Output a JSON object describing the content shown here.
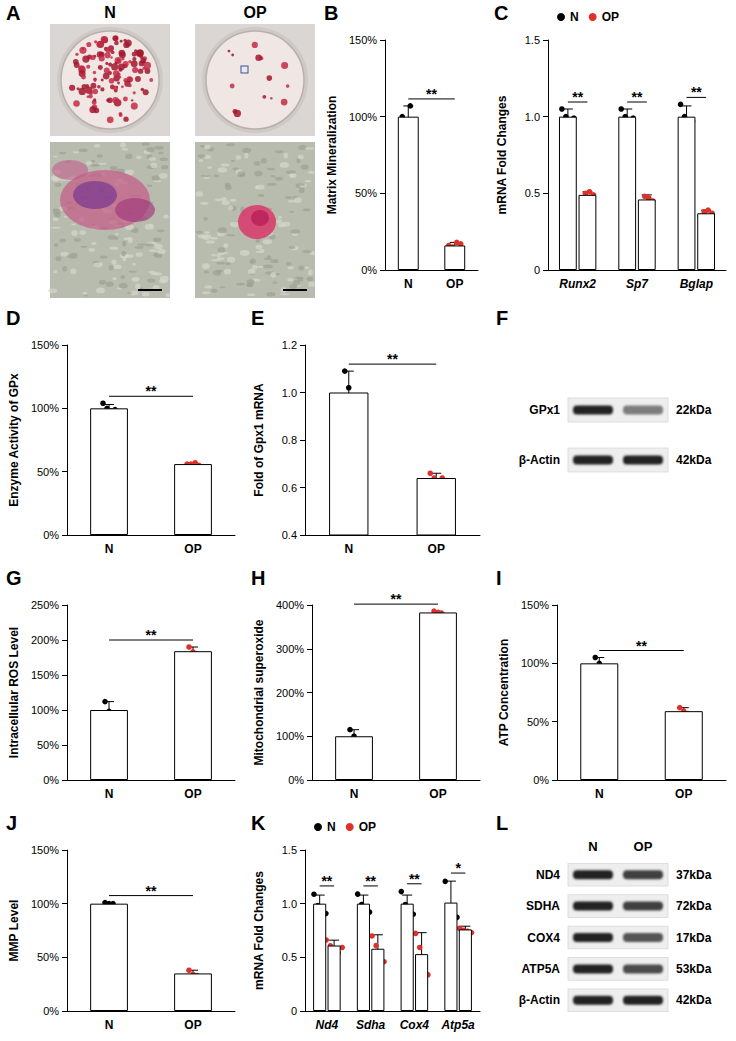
{
  "chart_data": [
    {
      "panel": "B",
      "type": "bar",
      "categories": [
        "N",
        "OP"
      ],
      "values": [
        100,
        16
      ],
      "errors": [
        7,
        2
      ],
      "points": [
        [
          100,
          96,
          107,
          97
        ],
        [
          16,
          15,
          18,
          17
        ]
      ],
      "colors": [
        "#000000",
        "#e0302a"
      ],
      "ylabel": "Matrix Mineralization",
      "ylim": [
        0,
        150
      ],
      "yticks": [
        {
          "value": 0,
          "label": "0%"
        },
        {
          "value": 50,
          "label": "50%"
        },
        {
          "value": 100,
          "label": "100%"
        },
        {
          "value": 150,
          "label": "150%"
        }
      ],
      "significance": "**"
    },
    {
      "panel": "C",
      "type": "bar",
      "categories": [
        "Runx2",
        "Sp7",
        "Bglap"
      ],
      "series": [
        {
          "name": "N",
          "color": "#000000",
          "values": [
            1,
            1,
            1
          ],
          "errors": [
            0.05,
            0.05,
            0.07
          ],
          "points": [
            [
              1.05,
              1.0,
              0.96,
              0.99
            ],
            [
              1.05,
              1.0,
              0.96,
              0.99
            ],
            [
              1.08,
              1.0,
              0.95,
              0.97
            ]
          ]
        },
        {
          "name": "OP",
          "color": "#e0302a",
          "values": [
            0.49,
            0.46,
            0.37
          ],
          "errors": [
            0.02,
            0.03,
            0.02
          ],
          "points": [
            [
              0.47,
              0.5,
              0.51,
              0.49
            ],
            [
              0.43,
              0.48,
              0.47,
              0.45
            ],
            [
              0.35,
              0.38,
              0.39,
              0.37
            ]
          ]
        }
      ],
      "ylabel": "mRNA Fold Changes",
      "ylim": [
        0,
        1.5
      ],
      "yticks": [
        0,
        0.5,
        {
          "value": 1,
          "label": "1.0"
        },
        1.5
      ],
      "legend": "upper left",
      "significance": [
        "**",
        "**",
        "**"
      ]
    },
    {
      "panel": "D",
      "type": "bar",
      "categories": [
        "N",
        "OP"
      ],
      "values": [
        100,
        56
      ],
      "errors": [
        3,
        1
      ],
      "points": [
        [
          104,
          100,
          98,
          99
        ],
        [
          56,
          56,
          57,
          55
        ]
      ],
      "colors": [
        "#000000",
        "#e0302a"
      ],
      "ylabel": "Enzyme Activity of GPx",
      "ylim": [
        0,
        150
      ],
      "yticks": [
        {
          "value": 0,
          "label": "0%"
        },
        {
          "value": 50,
          "label": "50%"
        },
        {
          "value": 100,
          "label": "100%"
        },
        {
          "value": 150,
          "label": "150%"
        }
      ],
      "significance": "**"
    },
    {
      "panel": "E",
      "type": "bar",
      "categories": [
        "N",
        "OP"
      ],
      "values": [
        1.0,
        0.64
      ],
      "errors": [
        0.09,
        0.02
      ],
      "points": [
        [
          1.09,
          1.02,
          0.88
        ],
        [
          0.66,
          0.64,
          0.62,
          0.64
        ]
      ],
      "colors": [
        "#000000",
        "#e0302a"
      ],
      "ylabel": "Fold of Gpx1 mRNA",
      "ylim": [
        0.4,
        1.2
      ],
      "yticks": [
        0.4,
        0.6,
        0.8,
        {
          "value": 1,
          "label": "1.0"
        },
        1.2
      ],
      "significance": "**"
    },
    {
      "panel": "G",
      "type": "bar",
      "categories": [
        "N",
        "OP"
      ],
      "values": [
        100,
        184
      ],
      "errors": [
        12,
        6
      ],
      "points": [
        [
          112,
          98,
          90
        ],
        [
          190,
          183,
          180
        ]
      ],
      "colors": [
        "#000000",
        "#e0302a"
      ],
      "ylabel": "Intracellular ROS Level",
      "ylim": [
        0,
        250
      ],
      "yticks": [
        {
          "value": 0,
          "label": "0%"
        },
        {
          "value": 50,
          "label": "50%"
        },
        {
          "value": 100,
          "label": "100%"
        },
        {
          "value": 150,
          "label": "150%"
        },
        {
          "value": 200,
          "label": "200%"
        },
        {
          "value": 250,
          "label": "250%"
        }
      ],
      "significance": "**"
    },
    {
      "panel": "H",
      "type": "bar",
      "categories": [
        "N",
        "OP"
      ],
      "values": [
        100,
        383
      ],
      "errors": [
        15,
        3
      ],
      "points": [
        [
          115,
          100,
          88
        ],
        [
          386,
          383,
          380
        ]
      ],
      "colors": [
        "#000000",
        "#e0302a"
      ],
      "ylabel": "Mitochondrial superoxide",
      "ylim": [
        0,
        400
      ],
      "yticks": [
        {
          "value": 0,
          "label": "0%"
        },
        {
          "value": 100,
          "label": "100%"
        },
        {
          "value": 200,
          "label": "200%"
        },
        {
          "value": 300,
          "label": "300%"
        },
        {
          "value": 400,
          "label": "400%"
        }
      ],
      "significance": "**"
    },
    {
      "panel": "I",
      "type": "bar",
      "categories": [
        "N",
        "OP"
      ],
      "values": [
        100,
        59
      ],
      "errors": [
        5,
        3
      ],
      "points": [
        [
          105,
          100,
          95
        ],
        [
          62,
          59,
          57
        ]
      ],
      "colors": [
        "#000000",
        "#e0302a"
      ],
      "ylabel": "ATP Concentration",
      "ylim": [
        0,
        150
      ],
      "yticks": [
        {
          "value": 0,
          "label": "0%"
        },
        {
          "value": 50,
          "label": "50%"
        },
        {
          "value": 100,
          "label": "100%"
        },
        {
          "value": 150,
          "label": "150%"
        }
      ],
      "significance": "**"
    },
    {
      "panel": "J",
      "type": "bar",
      "categories": [
        "N",
        "OP"
      ],
      "values": [
        100,
        35
      ],
      "errors": [
        1,
        3
      ],
      "points": [
        [
          101,
          100,
          100
        ],
        [
          38,
          34,
          33
        ]
      ],
      "colors": [
        "#000000",
        "#e0302a"
      ],
      "ylabel": "MMP Level",
      "ylim": [
        0,
        150
      ],
      "yticks": [
        {
          "value": 0,
          "label": "0%"
        },
        {
          "value": 50,
          "label": "50%"
        },
        {
          "value": 100,
          "label": "100%"
        },
        {
          "value": 150,
          "label": "150%"
        }
      ],
      "significance": "**"
    },
    {
      "panel": "K",
      "type": "bar",
      "categories": [
        "Nd4",
        "Sdha",
        "Cox4",
        "Atp5a"
      ],
      "series": [
        {
          "name": "N",
          "color": "#000000",
          "values": [
            1,
            1,
            1,
            1.01
          ],
          "errors": [
            0.08,
            0.08,
            0.08,
            0.2
          ],
          "points": [
            [
              1.1,
              0.99,
              0.94,
              0.92
            ],
            [
              1.1,
              1.0,
              0.95,
              0.93
            ],
            [
              1.12,
              1.0,
              0.97,
              0.91
            ],
            [
              1.22,
              0.96,
              0.95,
              0.88
            ]
          ]
        },
        {
          "name": "OP",
          "color": "#e0302a",
          "values": [
            0.61,
            0.58,
            0.53,
            0.76
          ],
          "errors": [
            0.05,
            0.13,
            0.2,
            0.03
          ],
          "points": [
            [
              0.67,
              0.62,
              0.58,
              0.55,
              0.6
            ],
            [
              0.71,
              0.62,
              0.5,
              0.47
            ],
            [
              0.73,
              0.6,
              0.43,
              0.35
            ],
            [
              0.78,
              0.76,
              0.75,
              0.74
            ]
          ]
        }
      ],
      "ylabel": "mRNA Fold Changes",
      "ylim": [
        0,
        1.5
      ],
      "yticks": [
        0,
        0.5,
        {
          "value": 1,
          "label": "1.0"
        },
        1.5
      ],
      "legend": "upper left",
      "significance": [
        "**",
        "**",
        "**",
        "*"
      ]
    }
  ],
  "images": {
    "panel": "A",
    "labels": [
      "N",
      "OP"
    ]
  },
  "blots": [
    {
      "panel": "F",
      "rows": [
        {
          "name": "GPx1",
          "size": "22kDa",
          "intensity": [
            1,
            0.55
          ]
        },
        {
          "name": "β-Actin",
          "size": "42kDa",
          "intensity": [
            1,
            1
          ]
        }
      ]
    },
    {
      "panel": "L",
      "lanes": [
        "N",
        "OP"
      ],
      "rows": [
        {
          "name": "ND4",
          "size": "37kDa",
          "intensity": [
            1,
            0.85
          ]
        },
        {
          "name": "SDHA",
          "size": "72kDa",
          "intensity": [
            1,
            0.85
          ]
        },
        {
          "name": "COX4",
          "size": "17kDa",
          "intensity": [
            1,
            0.75
          ]
        },
        {
          "name": "ATP5A",
          "size": "53kDa",
          "intensity": [
            1,
            0.8
          ]
        },
        {
          "name": "β-Actin",
          "size": "42kDa",
          "intensity": [
            1,
            1
          ]
        }
      ]
    }
  ]
}
